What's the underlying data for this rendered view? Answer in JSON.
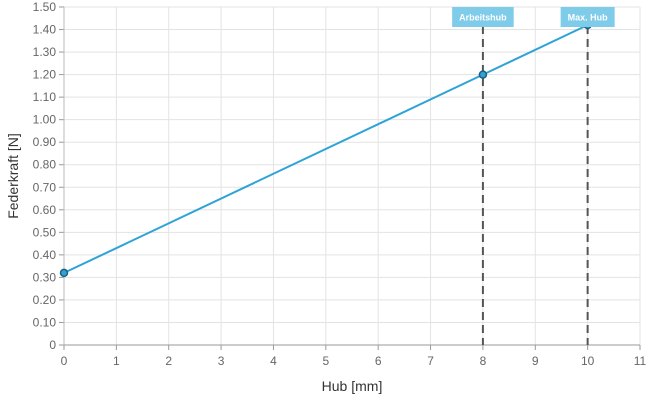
{
  "chart_data": {
    "type": "line",
    "title": "",
    "xlabel": "Hub [mm]",
    "ylabel": "Federkraft [N]",
    "xlim": [
      0,
      11
    ],
    "ylim": [
      0,
      1.5
    ],
    "x_ticks": [
      "0",
      "1",
      "2",
      "3",
      "4",
      "5",
      "6",
      "7",
      "8",
      "9",
      "10",
      "11"
    ],
    "y_ticks": [
      "0",
      "0.10",
      "0.20",
      "0.30",
      "0.40",
      "0.50",
      "0.60",
      "0.70",
      "0.80",
      "0.90",
      "1.00",
      "1.10",
      "1.20",
      "1.30",
      "1.40",
      "1.50"
    ],
    "grid": true,
    "series": [
      {
        "color": "#2ea3d6",
        "x": [
          0,
          8,
          10
        ],
        "y": [
          0.32,
          1.2,
          1.42
        ]
      }
    ],
    "markers": [
      {
        "label": "Arbeitshub",
        "x": 8
      },
      {
        "label": "Max. Hub",
        "x": 10
      }
    ],
    "marker_color": "#7ecbea",
    "line_color": "#555555"
  }
}
